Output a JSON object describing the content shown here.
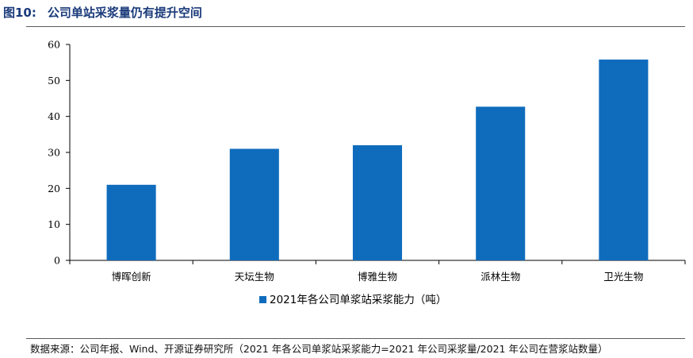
{
  "figure": {
    "number": "图10:",
    "title": "公司单站采浆量仍有提升空间"
  },
  "source_note": "数据来源：公司年报、Wind、开源证券研究所（2021 年各公司单浆站采浆能力=2021 年公司采浆量/2021 年公司在营浆站数量）",
  "chart_data": {
    "type": "bar",
    "categories": [
      "博晖创新",
      "天坛生物",
      "博雅生物",
      "派林生物",
      "卫光生物"
    ],
    "series": [
      {
        "name": "2021年各公司单浆站采浆能力（吨）",
        "values": [
          21,
          31,
          32,
          42.7,
          55.8
        ],
        "color": "#0f6cbd"
      }
    ],
    "ylim": [
      0,
      60
    ],
    "yticks": [
      0,
      10,
      20,
      30,
      40,
      50,
      60
    ],
    "grid": false,
    "legend_position": "bottom-center"
  }
}
